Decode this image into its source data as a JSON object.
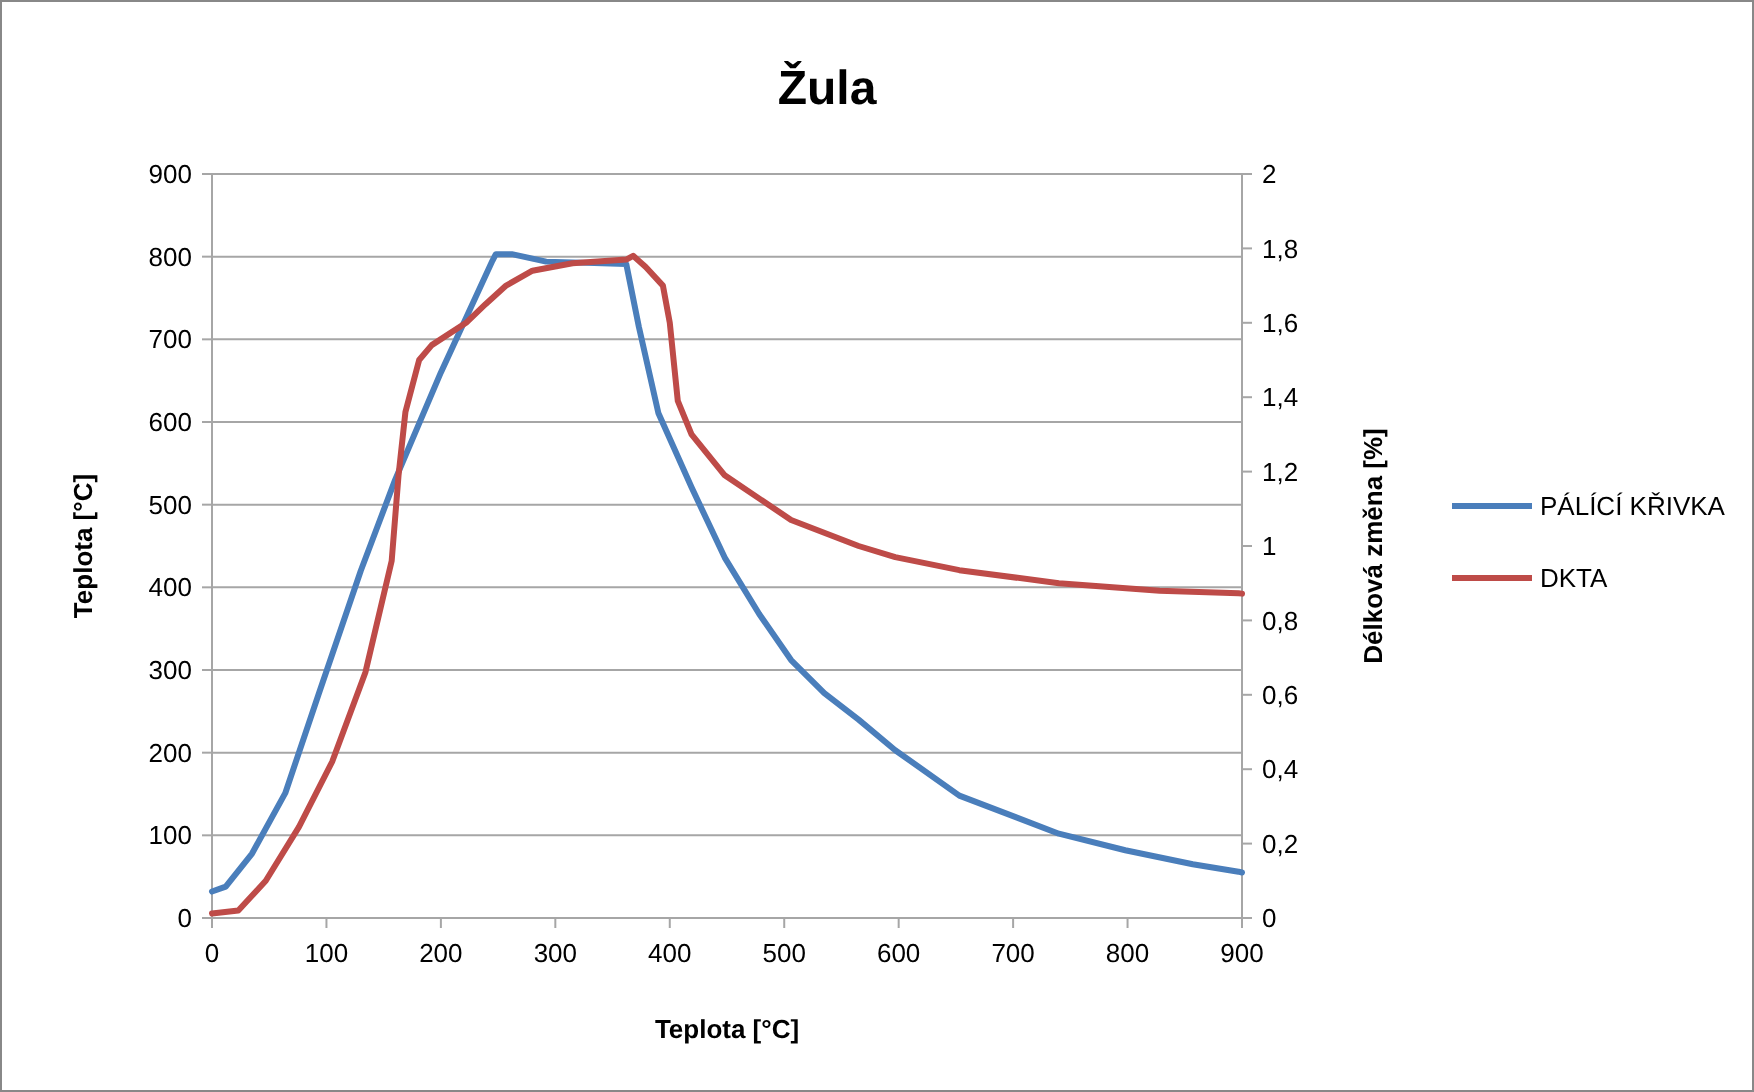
{
  "chart_data": {
    "type": "line",
    "title": "Žula",
    "xlabel": "Teplota [°C]",
    "ylabel": "Teplota [°C]",
    "y2label": "Délková změna [%]",
    "xlim": [
      0,
      900
    ],
    "xticks": [
      0,
      100,
      200,
      300,
      400,
      500,
      600,
      700,
      800,
      900
    ],
    "ylim": [
      0,
      900
    ],
    "yticks": [
      0,
      100,
      200,
      300,
      400,
      500,
      600,
      700,
      800,
      900
    ],
    "y2lim": [
      0,
      2
    ],
    "y2ticks": [
      0,
      {
        "value": 0.2,
        "label": "0,2"
      },
      {
        "value": 0.4,
        "label": "0,4"
      },
      {
        "value": 0.6,
        "label": "0,6"
      },
      {
        "value": 0.8,
        "label": "0,8"
      },
      1,
      {
        "value": 1.2,
        "label": "1,2"
      },
      {
        "value": 1.4,
        "label": "1,4"
      },
      {
        "value": 1.6,
        "label": "1,6"
      },
      {
        "value": 1.8,
        "label": "1,8"
      },
      2
    ],
    "grid": "y",
    "legend": "right",
    "marker": "none",
    "line_style": "solid",
    "series": [
      {
        "name": "PÁLÍCÍ KŘIVKA",
        "color": "#4a7ebb",
        "x": [
          0,
          12,
          35,
          64,
          93,
          130,
          160,
          200,
          245,
          248,
          262,
          292,
          362,
          373,
          390,
          419,
          448,
          478,
          506,
          535,
          565,
          597,
          653,
          740,
          798,
          857,
          897,
          900
        ],
        "values": [
          32,
          38,
          78,
          151,
          270,
          420,
          530,
          660,
          795,
          803,
          803,
          794,
          791,
          715,
          611,
          521,
          436,
          368,
          312,
          272,
          240,
          203,
          148,
          102,
          82,
          65,
          56,
          55
        ]
      },
      {
        "name": "DKTA",
        "color": "#be4b48",
        "axis": "y2",
        "x": [
          0,
          23,
          47,
          76,
          105,
          134,
          157,
          163,
          169,
          181,
          192,
          222,
          239,
          257,
          280,
          315,
          362,
          368,
          379,
          394,
          400,
          404,
          407,
          419,
          448,
          506,
          565,
          597,
          653,
          740,
          828,
          897,
          900
        ],
        "values": [
          0.012,
          0.02,
          0.1,
          0.245,
          0.42,
          0.66,
          0.96,
          1.19,
          1.36,
          1.5,
          1.54,
          1.6,
          1.65,
          1.7,
          1.74,
          1.76,
          1.77,
          1.78,
          1.75,
          1.7,
          1.6,
          1.48,
          1.39,
          1.3,
          1.19,
          1.07,
          1,
          0.97,
          0.935,
          0.9,
          0.88,
          0.873,
          0.872
        ]
      }
    ]
  }
}
